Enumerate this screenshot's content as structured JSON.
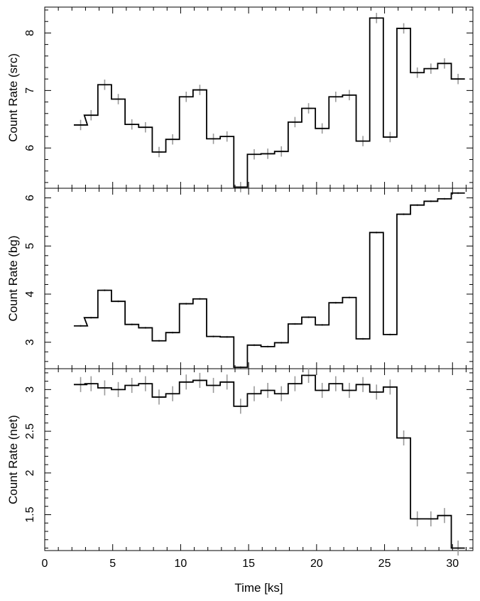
{
  "chart_data": [
    {
      "type": "line",
      "ylabel": "Count Rate (src)",
      "xlim": [
        0,
        31.5
      ],
      "ylim": [
        5.3,
        8.45
      ],
      "xticks": [
        0,
        5,
        10,
        15,
        20,
        25,
        30
      ],
      "yticks": [
        6,
        7,
        8
      ],
      "ytick_labels": [
        "6",
        "7",
        "8"
      ],
      "series": [
        {
          "x": [
            2.64,
            3.41,
            4.41,
            5.41,
            6.41,
            7.41,
            8.41,
            9.41,
            10.41,
            11.41,
            12.41,
            13.41,
            14.41,
            15.41,
            16.41,
            17.41,
            18.41,
            19.41,
            20.41,
            21.41,
            22.41,
            23.41,
            24.41,
            25.41,
            26.41,
            27.41,
            28.41,
            29.41,
            30.41
          ],
          "y": [
            6.4,
            6.57,
            7.1,
            6.85,
            6.41,
            6.36,
            5.93,
            6.15,
            6.89,
            7.01,
            6.16,
            6.2,
            5.32,
            5.89,
            5.9,
            5.94,
            6.45,
            6.69,
            6.34,
            6.89,
            6.92,
            6.12,
            8.26,
            6.19,
            8.08,
            7.31,
            7.38,
            7.47,
            7.2
          ],
          "xerr": [
            0.5,
            0.5,
            0.5,
            0.5,
            0.5,
            0.5,
            0.5,
            0.5,
            0.5,
            0.5,
            0.5,
            0.5,
            0.5,
            0.5,
            0.5,
            0.5,
            0.5,
            0.5,
            0.5,
            0.5,
            0.5,
            0.5,
            0.5,
            0.5,
            0.5,
            0.5,
            0.5,
            0.5,
            0.5
          ],
          "yerr": [
            0.09,
            0.09,
            0.09,
            0.09,
            0.09,
            0.09,
            0.09,
            0.09,
            0.09,
            0.09,
            0.09,
            0.09,
            0.09,
            0.09,
            0.09,
            0.09,
            0.09,
            0.09,
            0.09,
            0.09,
            0.09,
            0.09,
            0.09,
            0.09,
            0.09,
            0.09,
            0.09,
            0.09,
            0.09
          ]
        }
      ]
    },
    {
      "type": "line",
      "ylabel": "Count Rate (bg)",
      "xlim": [
        0,
        31.5
      ],
      "ylim": [
        2.45,
        6.2
      ],
      "xticks": [
        0,
        5,
        10,
        15,
        20,
        25,
        30
      ],
      "yticks": [
        3,
        4,
        5,
        6
      ],
      "ytick_labels": [
        "3",
        "4",
        "5",
        "6"
      ],
      "series": [
        {
          "x": [
            2.64,
            3.41,
            4.41,
            5.41,
            6.41,
            7.41,
            8.41,
            9.41,
            10.41,
            11.41,
            12.41,
            13.41,
            14.41,
            15.41,
            16.41,
            17.41,
            18.41,
            19.41,
            20.41,
            21.41,
            22.41,
            23.41,
            24.41,
            25.41,
            26.41,
            27.41,
            28.41,
            29.41,
            30.41
          ],
          "y": [
            3.34,
            3.51,
            4.08,
            3.85,
            3.37,
            3.3,
            3.03,
            3.2,
            3.8,
            3.9,
            3.12,
            3.11,
            2.48,
            2.94,
            2.91,
            2.99,
            3.38,
            3.52,
            3.36,
            3.82,
            3.93,
            3.07,
            5.28,
            3.16,
            5.66,
            5.85,
            5.93,
            5.98,
            6.1
          ],
          "xerr": [
            0.5,
            0.5,
            0.5,
            0.5,
            0.5,
            0.5,
            0.5,
            0.5,
            0.5,
            0.5,
            0.5,
            0.5,
            0.5,
            0.5,
            0.5,
            0.5,
            0.5,
            0.5,
            0.5,
            0.5,
            0.5,
            0.5,
            0.5,
            0.5,
            0.5,
            0.5,
            0.5,
            0.5,
            0.5
          ],
          "yerr": [
            0.02,
            0.02,
            0.02,
            0.02,
            0.02,
            0.02,
            0.02,
            0.02,
            0.02,
            0.02,
            0.02,
            0.02,
            0.02,
            0.02,
            0.02,
            0.02,
            0.02,
            0.02,
            0.02,
            0.02,
            0.02,
            0.02,
            0.02,
            0.02,
            0.02,
            0.02,
            0.02,
            0.02,
            0.02
          ]
        }
      ]
    },
    {
      "type": "line",
      "ylabel": "Count Rate (net)",
      "xlim": [
        0,
        31.5
      ],
      "ylim": [
        1.07,
        3.25
      ],
      "xticks": [
        0,
        5,
        10,
        15,
        20,
        25,
        30
      ],
      "xtick_labels": [
        "0",
        "5",
        "10",
        "15",
        "20",
        "25",
        "30"
      ],
      "xlabel": "Time [ks]",
      "yticks": [
        1.5,
        2,
        2.5,
        3
      ],
      "ytick_labels": [
        "1.5",
        "2",
        "2.5",
        "3"
      ],
      "series": [
        {
          "x": [
            2.64,
            3.41,
            4.41,
            5.41,
            6.41,
            7.41,
            8.41,
            9.41,
            10.41,
            11.41,
            12.41,
            13.41,
            14.41,
            15.41,
            16.41,
            17.41,
            18.41,
            19.41,
            20.41,
            21.41,
            22.41,
            23.41,
            24.41,
            25.41,
            26.41,
            27.41,
            28.41,
            29.41,
            30.41
          ],
          "y": [
            3.06,
            3.07,
            3.02,
            3.0,
            3.05,
            3.07,
            2.91,
            2.95,
            3.09,
            3.11,
            3.05,
            3.09,
            2.8,
            2.95,
            2.99,
            2.95,
            3.07,
            3.17,
            2.99,
            3.07,
            2.99,
            3.06,
            2.97,
            3.03,
            2.42,
            1.45,
            1.45,
            1.49,
            1.1
          ],
          "xerr": [
            0.5,
            0.5,
            0.5,
            0.5,
            0.5,
            0.5,
            0.5,
            0.5,
            0.5,
            0.5,
            0.5,
            0.5,
            0.5,
            0.5,
            0.5,
            0.5,
            0.5,
            0.5,
            0.5,
            0.5,
            0.5,
            0.5,
            0.5,
            0.5,
            0.5,
            0.5,
            0.5,
            0.5,
            0.5
          ],
          "yerr": [
            0.09,
            0.09,
            0.09,
            0.09,
            0.09,
            0.09,
            0.09,
            0.09,
            0.09,
            0.09,
            0.09,
            0.09,
            0.09,
            0.09,
            0.09,
            0.09,
            0.09,
            0.09,
            0.09,
            0.09,
            0.09,
            0.09,
            0.09,
            0.09,
            0.09,
            0.09,
            0.09,
            0.09,
            0.09
          ]
        }
      ]
    }
  ],
  "colors": {
    "step_line": "#000000",
    "error_bars": "#9a9a9a",
    "frame": "#000000"
  }
}
